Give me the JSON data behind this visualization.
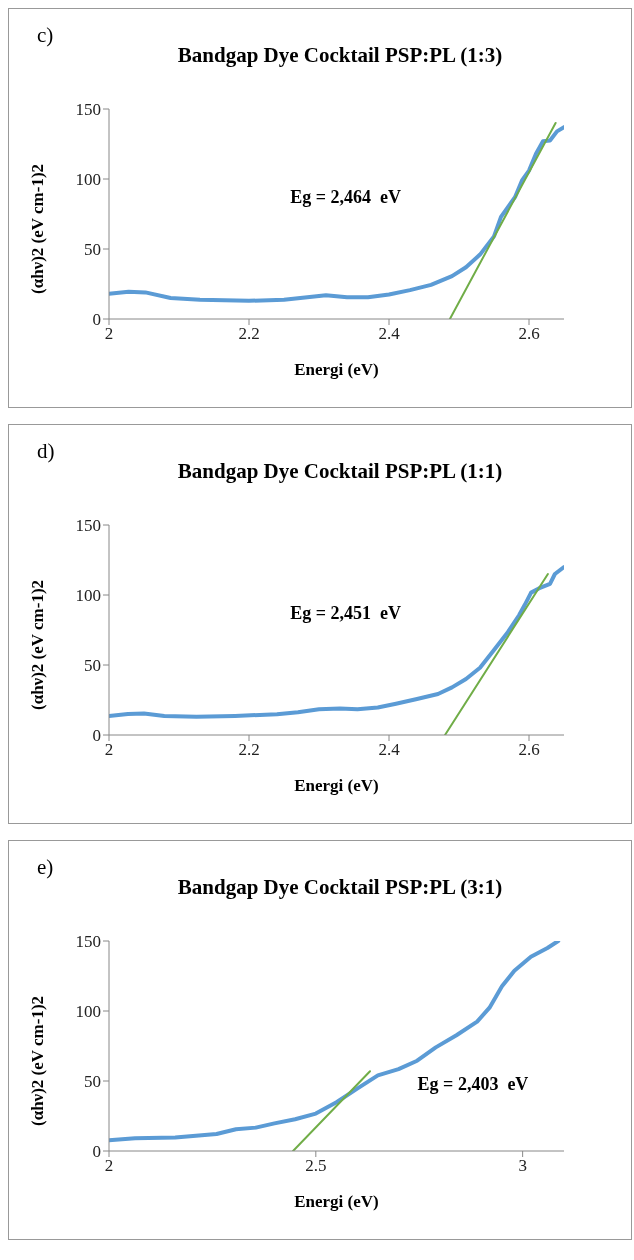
{
  "chart_data": [
    {
      "type": "line",
      "title": "Bandgap Dye Cocktail PSP:PL (1:3)",
      "xlabel": "Energi (eV)",
      "ylabel": "(αhν)2 (eV cm-1)2",
      "annotations": [
        "c)",
        "Eg = 2,464  eV"
      ],
      "xlim": [
        2,
        2.65
      ],
      "xticks": [
        2,
        2.2,
        2.4,
        2.6
      ],
      "ylim": [
        0,
        150
      ],
      "yticks": [
        0,
        50,
        100,
        150
      ],
      "series": [
        {
          "color": "#5b9bd5",
          "x": [
            2.0,
            2.028,
            2.052,
            2.088,
            2.13,
            2.2,
            2.25,
            2.28,
            2.31,
            2.34,
            2.37,
            2.4,
            2.43,
            2.46,
            2.49,
            2.51,
            2.53,
            2.55,
            2.56,
            2.58,
            2.59,
            2.6,
            2.61,
            2.62,
            2.63,
            2.64,
            2.65
          ],
          "values": [
            18,
            19.4,
            19,
            15,
            13.8,
            13,
            13.8,
            15.3,
            17,
            15.6,
            15.6,
            17.5,
            20.6,
            24.4,
            30.6,
            37,
            46,
            59,
            73,
            87,
            99,
            106,
            118,
            127,
            127.5,
            134,
            137
          ]
        },
        {
          "color": "#70ad47",
          "x": [
            2.487,
            2.638
          ],
          "values": [
            0,
            140
          ]
        }
      ]
    },
    {
      "type": "line",
      "title": "Bandgap Dye Cocktail PSP:PL (1:1)",
      "xlabel": "Energi (eV)",
      "ylabel": "(αhν)2 (eV cm-1)2",
      "annotations": [
        "d)",
        "Eg = 2,451  eV"
      ],
      "xlim": [
        2,
        2.65
      ],
      "xticks": [
        2,
        2.2,
        2.4,
        2.6
      ],
      "ylim": [
        0,
        150
      ],
      "yticks": [
        0,
        50,
        100,
        150
      ],
      "series": [
        {
          "color": "#5b9bd5",
          "x": [
            2.0,
            2.027,
            2.05,
            2.079,
            2.125,
            2.18,
            2.24,
            2.27,
            2.3,
            2.33,
            2.355,
            2.384,
            2.41,
            2.44,
            2.47,
            2.49,
            2.51,
            2.53,
            2.55,
            2.57,
            2.586,
            2.594,
            2.603,
            2.614,
            2.63,
            2.637,
            2.65
          ],
          "values": [
            13.6,
            15,
            15.4,
            13.6,
            13,
            13.6,
            14.8,
            16.3,
            18.4,
            19,
            18.4,
            19.6,
            22.3,
            25.7,
            29.3,
            34,
            40,
            48,
            60.7,
            73.6,
            85.7,
            93,
            101.7,
            104.7,
            108,
            115,
            120
          ]
        },
        {
          "color": "#70ad47",
          "x": [
            2.48,
            2.627
          ],
          "values": [
            0,
            115
          ]
        }
      ]
    },
    {
      "type": "line",
      "title": "Bandgap Dye Cocktail PSP:PL (3:1)",
      "xlabel": "Energi (eV)",
      "ylabel": "(αhν)2 (eV cm-1)2",
      "annotations": [
        "e)",
        "Eg = 2,403  eV"
      ],
      "xlim": [
        2,
        3.1
      ],
      "xticks": [
        2,
        2.5,
        3
      ],
      "ylim": [
        0,
        150
      ],
      "yticks": [
        0,
        50,
        100,
        150
      ],
      "series": [
        {
          "color": "#5b9bd5",
          "x": [
            2.0,
            2.063,
            2.16,
            2.26,
            2.307,
            2.355,
            2.4,
            2.45,
            2.5,
            2.55,
            2.6,
            2.65,
            2.7,
            2.745,
            2.79,
            2.84,
            2.89,
            2.92,
            2.95,
            2.98,
            3.02,
            3.06,
            3.086
          ],
          "values": [
            7.6,
            9.1,
            9.7,
            12.1,
            15.5,
            16.7,
            19.7,
            22.7,
            26.7,
            34.8,
            44.5,
            54,
            58.5,
            64.5,
            74,
            82.7,
            92.4,
            102.4,
            117.6,
            128.8,
            138.8,
            145,
            150
          ]
        },
        {
          "color": "#70ad47",
          "x": [
            2.445,
            2.631
          ],
          "values": [
            0,
            57
          ]
        }
      ]
    }
  ]
}
